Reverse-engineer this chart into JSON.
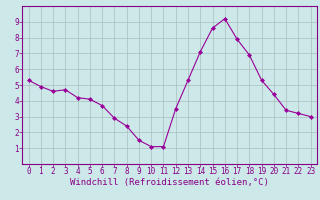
{
  "x": [
    0,
    1,
    2,
    3,
    4,
    5,
    6,
    7,
    8,
    9,
    10,
    11,
    12,
    13,
    14,
    15,
    16,
    17,
    18,
    19,
    20,
    21,
    22,
    23
  ],
  "y": [
    5.3,
    4.9,
    4.6,
    4.7,
    4.2,
    4.1,
    3.7,
    2.9,
    2.4,
    1.5,
    1.1,
    1.1,
    3.5,
    5.3,
    7.1,
    8.6,
    9.2,
    7.9,
    6.9,
    5.3,
    4.4,
    3.4,
    3.2,
    3.0
  ],
  "line_color": "#990099",
  "marker": "D",
  "marker_size": 2,
  "bg_color": "#cce8e8",
  "grid_color": "#aabcbc",
  "xlabel": "Windchill (Refroidissement éolien,°C)",
  "ylim": [
    0,
    10
  ],
  "xlim": [
    -0.5,
    23.5
  ],
  "yticks": [
    1,
    2,
    3,
    4,
    5,
    6,
    7,
    8,
    9
  ],
  "xticks": [
    0,
    1,
    2,
    3,
    4,
    5,
    6,
    7,
    8,
    9,
    10,
    11,
    12,
    13,
    14,
    15,
    16,
    17,
    18,
    19,
    20,
    21,
    22,
    23
  ],
  "axis_color": "#880088",
  "tick_label_color": "#880088",
  "xlabel_color": "#880088",
  "tick_fontsize": 5.5,
  "xlabel_fontsize": 6.5
}
